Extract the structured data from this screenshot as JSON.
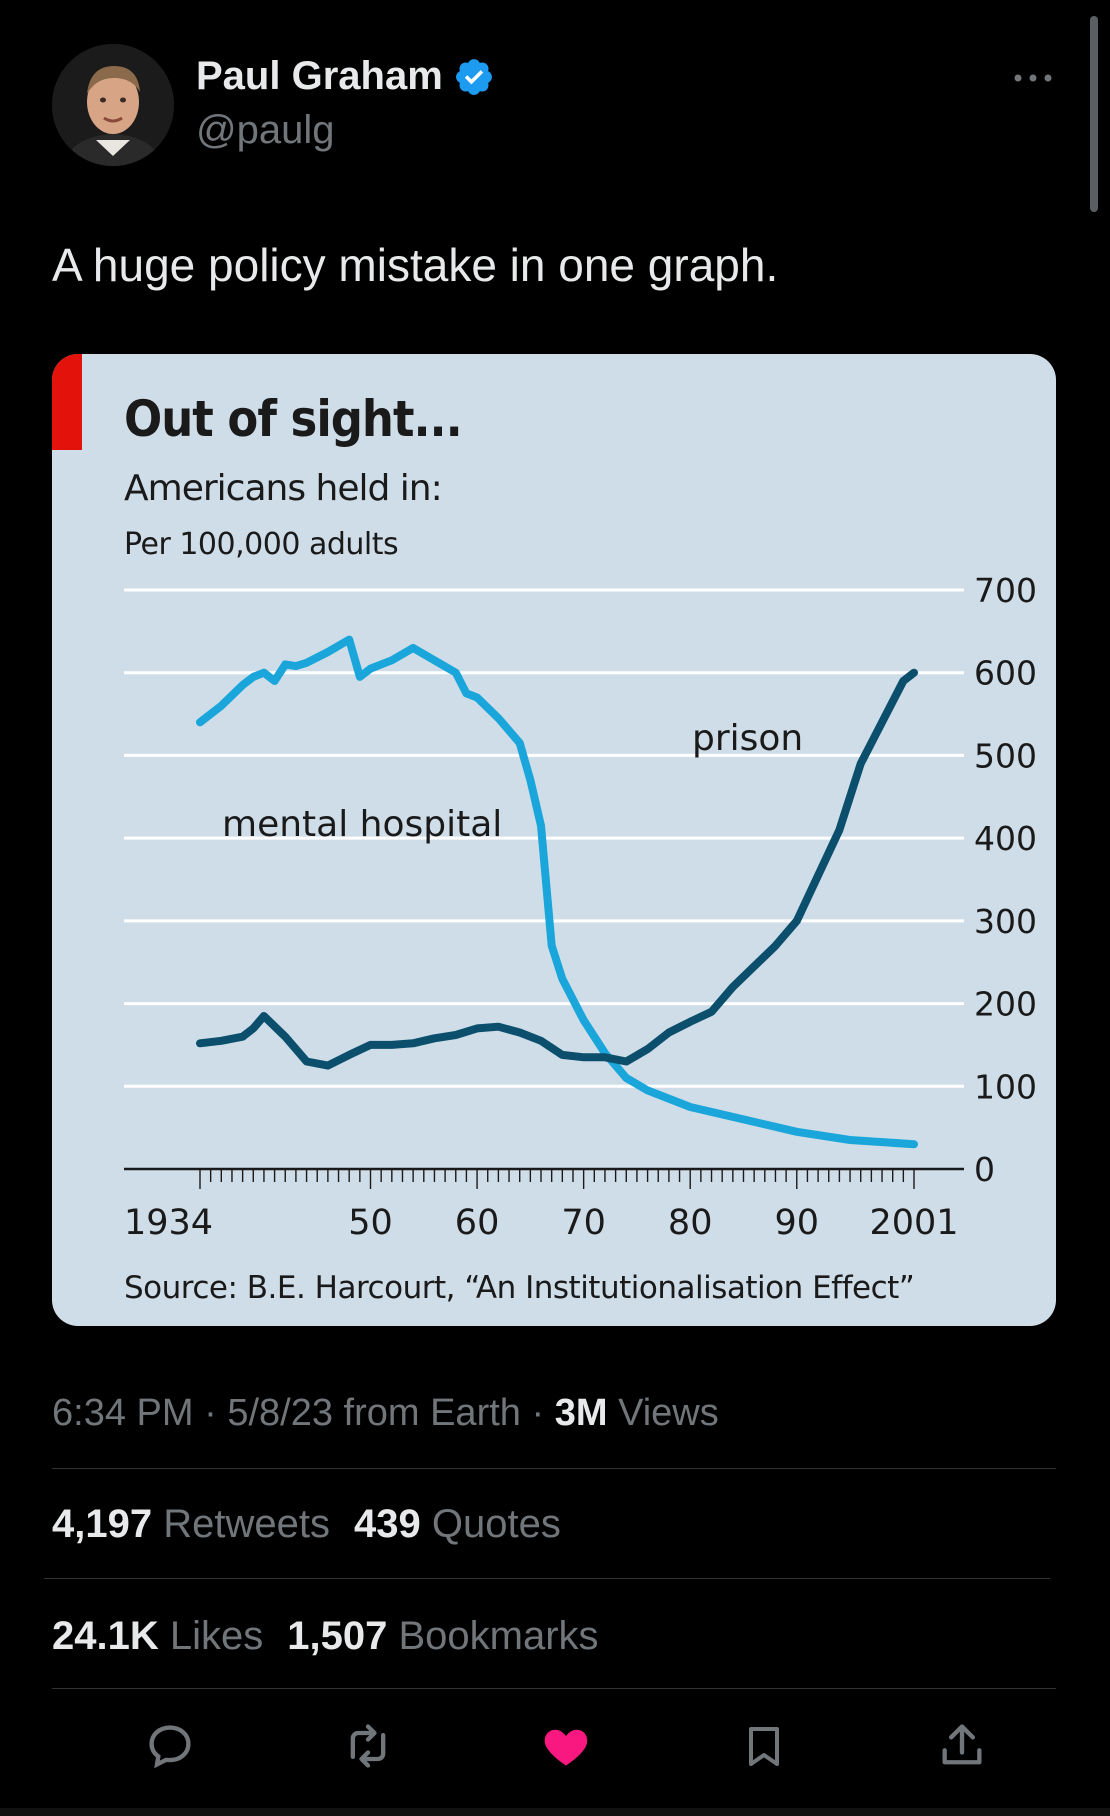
{
  "author": {
    "name": "Paul Graham",
    "handle": "@paulg"
  },
  "tweet": {
    "text": "A huge policy mistake in one graph."
  },
  "meta": {
    "time": "6:34 PM",
    "date": "5/8/23",
    "source": "from Earth",
    "views_count": "3M",
    "views_label": "Views"
  },
  "stats": {
    "retweets_count": "4,197",
    "retweets_label": "Retweets",
    "quotes_count": "439",
    "quotes_label": "Quotes",
    "likes_count": "24.1K",
    "likes_label": "Likes",
    "bookmarks_count": "1,507",
    "bookmarks_label": "Bookmarks"
  },
  "icons": {
    "reply": "reply-icon",
    "retweet": "retweet-icon",
    "like": "heart-icon",
    "bookmark": "bookmark-icon",
    "share": "share-icon",
    "verified": "verified-badge-icon",
    "more": "more-icon"
  },
  "colors": {
    "verified": "#1d9bf0",
    "like": "#f91880",
    "mental": "#1aa6da",
    "prison": "#0b4f6c",
    "card_bg": "#cfdde8",
    "accent_red": "#e3120b"
  },
  "chart_data": {
    "type": "line",
    "title": "Out of sight...",
    "subtitle": "Americans held in:",
    "unit_label": "Per 100,000 adults",
    "source": "Source: B.E. Harcourt, “An Institutionalisation Effect”",
    "x_tick_labels": [
      "1934",
      "50",
      "60",
      "70",
      "80",
      "90",
      "2001"
    ],
    "x_tick_values": [
      1934,
      1950,
      1960,
      1970,
      1980,
      1990,
      2001
    ],
    "y_ticks": [
      0,
      100,
      200,
      300,
      400,
      500,
      600,
      700
    ],
    "xlim": [
      1930,
      2005
    ],
    "ylim": [
      0,
      700
    ],
    "grid": true,
    "series": [
      {
        "name": "mental hospital",
        "x": [
          1934,
          1936,
          1938,
          1939,
          1940,
          1941,
          1942,
          1943,
          1944,
          1946,
          1948,
          1949,
          1950,
          1952,
          1954,
          1956,
          1958,
          1959,
          1960,
          1962,
          1964,
          1965,
          1966,
          1967,
          1968,
          1970,
          1972,
          1974,
          1976,
          1980,
          1985,
          1990,
          1995,
          2001
        ],
        "y": [
          540,
          560,
          585,
          595,
          600,
          590,
          610,
          608,
          612,
          625,
          640,
          595,
          605,
          615,
          630,
          615,
          600,
          575,
          570,
          545,
          515,
          470,
          415,
          270,
          230,
          180,
          140,
          110,
          95,
          75,
          60,
          45,
          35,
          30
        ]
      },
      {
        "name": "prison",
        "x": [
          1934,
          1936,
          1938,
          1939,
          1940,
          1942,
          1944,
          1946,
          1948,
          1950,
          1952,
          1954,
          1956,
          1958,
          1960,
          1962,
          1964,
          1966,
          1968,
          1970,
          1972,
          1974,
          1976,
          1978,
          1980,
          1982,
          1984,
          1986,
          1988,
          1990,
          1992,
          1994,
          1996,
          1998,
          2000,
          2001
        ],
        "y": [
          152,
          155,
          160,
          170,
          185,
          160,
          130,
          125,
          138,
          150,
          150,
          152,
          158,
          162,
          170,
          172,
          165,
          155,
          138,
          135,
          135,
          130,
          145,
          165,
          178,
          190,
          220,
          245,
          270,
          300,
          355,
          410,
          490,
          540,
          590,
          600
        ]
      }
    ],
    "annotations": [
      {
        "text": "mental hospital",
        "series": "mental hospital"
      },
      {
        "text": "prison",
        "series": "prison"
      }
    ]
  }
}
